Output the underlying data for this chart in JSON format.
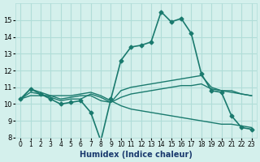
{
  "xlabel": "Humidex (Indice chaleur)",
  "ylabel": "",
  "x": [
    0,
    1,
    2,
    3,
    4,
    5,
    6,
    7,
    8,
    9,
    10,
    11,
    12,
    13,
    14,
    15,
    16,
    17,
    18,
    19,
    20,
    21,
    22,
    23
  ],
  "main_line": [
    10.3,
    10.9,
    10.6,
    10.3,
    10.0,
    10.1,
    10.2,
    9.5,
    7.8,
    10.3,
    12.6,
    13.4,
    13.5,
    13.7,
    15.5,
    14.9,
    15.1,
    14.2,
    11.8,
    10.8,
    10.7,
    9.3,
    8.6,
    8.5
  ],
  "line2": [
    10.3,
    10.9,
    10.7,
    10.5,
    10.3,
    10.4,
    10.5,
    10.5,
    10.2,
    10.1,
    10.8,
    11.0,
    11.1,
    11.2,
    11.3,
    11.4,
    11.5,
    11.6,
    11.7,
    11.0,
    10.8,
    10.8,
    10.6,
    10.5
  ],
  "line3": [
    10.3,
    10.5,
    10.5,
    10.5,
    10.5,
    10.5,
    10.6,
    10.7,
    10.5,
    10.2,
    9.9,
    9.7,
    9.6,
    9.5,
    9.4,
    9.3,
    9.2,
    9.1,
    9.0,
    8.9,
    8.8,
    8.8,
    8.7,
    8.6
  ],
  "line4": [
    10.3,
    10.7,
    10.6,
    10.4,
    10.2,
    10.3,
    10.3,
    10.6,
    10.4,
    10.1,
    10.4,
    10.6,
    10.7,
    10.8,
    10.9,
    11.0,
    11.1,
    11.1,
    11.2,
    10.9,
    10.8,
    10.7,
    10.6,
    10.5
  ],
  "color": "#1a7a6e",
  "bg_color": "#d4f0ec",
  "grid_color": "#b0ddd8",
  "ylim": [
    8,
    16
  ],
  "yticks": [
    8,
    9,
    10,
    11,
    12,
    13,
    14,
    15
  ],
  "xlim": [
    -0.5,
    23.5
  ]
}
